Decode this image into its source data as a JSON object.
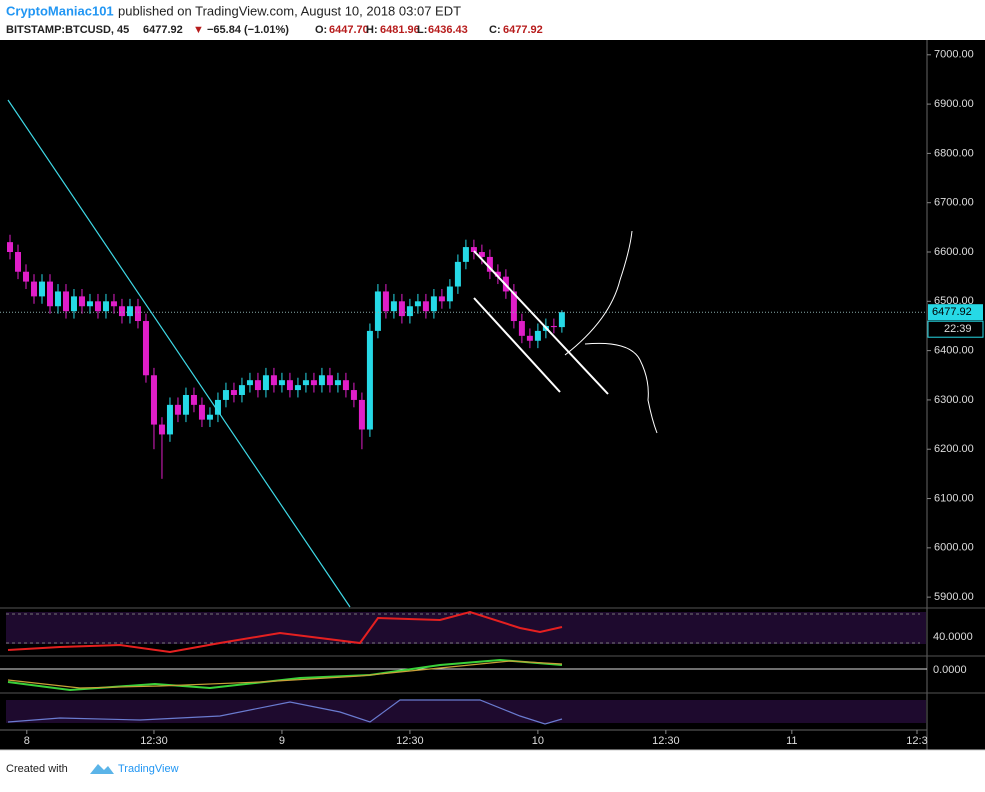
{
  "header": {
    "author": "CryptoManiac101",
    "published": "published on TradingView.com, August 10, 2018 03:07 EDT"
  },
  "legend": {
    "symbol": "BITSTAMP:BTCUSD, 45",
    "last": "6477.92",
    "arrow": "▼",
    "change": "−65.84 (−1.01%)",
    "o_label": "O:",
    "o": "6447.70",
    "h_label": "H:",
    "h": "6481.96",
    "l_label": "L:",
    "l": "6436.43",
    "c_label": "C:",
    "c": "6477.92"
  },
  "footer": {
    "created": "Created with",
    "brand": "TradingView"
  },
  "panes": {
    "rsi_label": "40.0000",
    "macd_label": "0.0000"
  },
  "chart_data": {
    "type": "candlestick",
    "up_color": "#26d9e6",
    "down_color": "#e01ec8",
    "open": [
      6620,
      6600,
      6560,
      6540,
      6510,
      6540,
      6490,
      6520,
      6480,
      6510,
      6490,
      6500,
      6480,
      6500,
      6490,
      6470,
      6490,
      6460,
      6350,
      6250,
      6230,
      6290,
      6270,
      6310,
      6290,
      6260,
      6270,
      6300,
      6320,
      6310,
      6330,
      6340,
      6320,
      6350,
      6330,
      6340,
      6320,
      6330,
      6340,
      6330,
      6350,
      6330,
      6340,
      6320,
      6300,
      6240,
      6440,
      6520,
      6480,
      6500,
      6470,
      6490,
      6500,
      6480,
      6510,
      6500,
      6530,
      6580,
      6610,
      6600,
      6590,
      6560,
      6550,
      6520,
      6460,
      6430,
      6420,
      6440,
      6450,
      6447.7
    ],
    "high": [
      6635,
      6615,
      6575,
      6555,
      6555,
      6555,
      6535,
      6535,
      6525,
      6525,
      6515,
      6515,
      6515,
      6515,
      6505,
      6505,
      6505,
      6475,
      6365,
      6265,
      6305,
      6305,
      6325,
      6325,
      6305,
      6285,
      6315,
      6335,
      6335,
      6345,
      6355,
      6355,
      6365,
      6365,
      6355,
      6355,
      6345,
      6355,
      6355,
      6365,
      6365,
      6355,
      6355,
      6335,
      6315,
      6455,
      6535,
      6535,
      6515,
      6515,
      6505,
      6515,
      6515,
      6525,
      6525,
      6545,
      6595,
      6625,
      6625,
      6615,
      6605,
      6575,
      6565,
      6535,
      6475,
      6445,
      6455,
      6465,
      6465,
      6481.96
    ],
    "low": [
      6585,
      6545,
      6525,
      6495,
      6495,
      6475,
      6475,
      6465,
      6465,
      6475,
      6475,
      6465,
      6465,
      6475,
      6455,
      6455,
      6445,
      6335,
      6200,
      6140,
      6215,
      6255,
      6255,
      6275,
      6245,
      6245,
      6255,
      6285,
      6295,
      6295,
      6315,
      6305,
      6305,
      6315,
      6315,
      6305,
      6305,
      6315,
      6315,
      6315,
      6315,
      6315,
      6305,
      6285,
      6200,
      6225,
      6425,
      6465,
      6465,
      6455,
      6455,
      6475,
      6465,
      6465,
      6485,
      6485,
      6515,
      6565,
      6585,
      6575,
      6545,
      6535,
      6505,
      6445,
      6415,
      6405,
      6405,
      6425,
      6435,
      6436.43
    ],
    "close": [
      6600,
      6560,
      6540,
      6510,
      6540,
      6490,
      6520,
      6480,
      6510,
      6490,
      6500,
      6480,
      6500,
      6490,
      6470,
      6490,
      6460,
      6350,
      6250,
      6230,
      6290,
      6270,
      6310,
      6290,
      6260,
      6270,
      6300,
      6320,
      6310,
      6330,
      6340,
      6320,
      6350,
      6330,
      6340,
      6320,
      6330,
      6340,
      6330,
      6350,
      6330,
      6340,
      6320,
      6300,
      6240,
      6440,
      6520,
      6480,
      6500,
      6470,
      6490,
      6500,
      6480,
      6510,
      6500,
      6530,
      6580,
      6610,
      6600,
      6590,
      6560,
      6550,
      6520,
      6460,
      6430,
      6420,
      6440,
      6450,
      6447.7,
      6477.92
    ],
    "ylim": [
      5880,
      7030
    ],
    "yticks": [
      {
        "value": 5900,
        "label": "5900.00"
      },
      {
        "value": 6000,
        "label": "6000.00"
      },
      {
        "value": 6100,
        "label": "6100.00"
      },
      {
        "value": 6200,
        "label": "6200.00"
      },
      {
        "value": 6300,
        "label": "6300.00"
      },
      {
        "value": 6400,
        "label": "6400.00"
      },
      {
        "value": 6500,
        "label": "6500.00"
      },
      {
        "value": 6600,
        "label": "6600.00"
      },
      {
        "value": 6700,
        "label": "6700.00"
      },
      {
        "value": 6800,
        "label": "6800.00"
      },
      {
        "value": 6900,
        "label": "6900.00"
      },
      {
        "value": 7000,
        "label": "7000.00"
      }
    ],
    "xlim": [
      -1.25,
      114.4
    ],
    "xticks": [
      {
        "value": 2.1,
        "label": "8"
      },
      {
        "value": 18,
        "label": "12:30"
      },
      {
        "value": 34,
        "label": "9"
      },
      {
        "value": 50,
        "label": "12:30"
      },
      {
        "value": 66,
        "label": "10"
      },
      {
        "value": 82,
        "label": "12:30"
      },
      {
        "value": 97.75,
        "label": "11"
      },
      {
        "value": 113.4,
        "label": "12:3"
      }
    ],
    "last_price": {
      "value": 6477.92,
      "label": "6477.92",
      "countdown": "22:39"
    }
  }
}
